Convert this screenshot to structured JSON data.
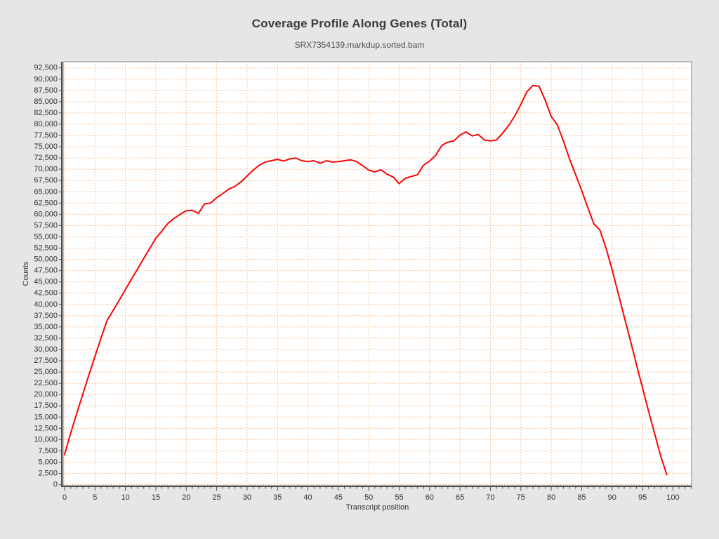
{
  "page": {
    "background": "#e6e6e6"
  },
  "chart_data": {
    "type": "line",
    "title": "Coverage Profile Along Genes (Total)",
    "subtitle": "SRX7354139.markdup.sorted.bam",
    "xlabel": "Transcript position",
    "ylabel": "Counts",
    "grid": true,
    "legend": "none",
    "xlim": [
      0,
      103
    ],
    "ylim": [
      0,
      93500
    ],
    "x_ticks": [
      0,
      5,
      10,
      15,
      20,
      25,
      30,
      35,
      40,
      45,
      50,
      55,
      60,
      65,
      70,
      75,
      80,
      85,
      90,
      95,
      100
    ],
    "y_ticks": [
      0,
      2500,
      5000,
      7500,
      10000,
      12500,
      15000,
      17500,
      20000,
      22500,
      25000,
      27500,
      30000,
      32500,
      35000,
      37500,
      40000,
      42500,
      45000,
      47500,
      50000,
      52500,
      55000,
      57500,
      60000,
      62500,
      65000,
      67500,
      70000,
      72500,
      75000,
      77500,
      80000,
      82500,
      85000,
      87500,
      90000,
      92500
    ],
    "series": [
      {
        "name": "SRX7354139.markdup.sorted.bam",
        "color": "#f60604",
        "x_start": 0,
        "x_step": 1,
        "values": [
          6700,
          11500,
          15800,
          20100,
          24400,
          28500,
          32600,
          36500,
          38700,
          41000,
          43300,
          45600,
          47900,
          50200,
          52400,
          54700,
          56300,
          58000,
          59100,
          60000,
          60800,
          60900,
          60200,
          62300,
          62500,
          63700,
          64600,
          65600,
          66200,
          67200,
          68500,
          69800,
          70900,
          71600,
          71900,
          72200,
          71800,
          72300,
          72500,
          71900,
          71700,
          71900,
          71300,
          71900,
          71600,
          71700,
          71900,
          72100,
          71700,
          70800,
          69800,
          69400,
          69900,
          68900,
          68300,
          66800,
          68000,
          68400,
          68800,
          70900,
          71800,
          73100,
          75300,
          76000,
          76300,
          77600,
          78300,
          77400,
          77700,
          76500,
          76300,
          76500,
          78000,
          79700,
          81800,
          84400,
          87200,
          88600,
          88400,
          85300,
          81700,
          79800,
          76300,
          72300,
          68800,
          65300,
          61500,
          57900,
          56500,
          52500,
          47700,
          42500,
          37200,
          32000,
          26700,
          21500,
          16300,
          11300,
          6300,
          2200
        ]
      }
    ],
    "style": {
      "plot_bg": "#ffffff",
      "grid_color": "#f8c49b",
      "plot_border": "#8a8a8a",
      "axis_color": "#4d4d4d",
      "tick_text": "#333333"
    }
  }
}
